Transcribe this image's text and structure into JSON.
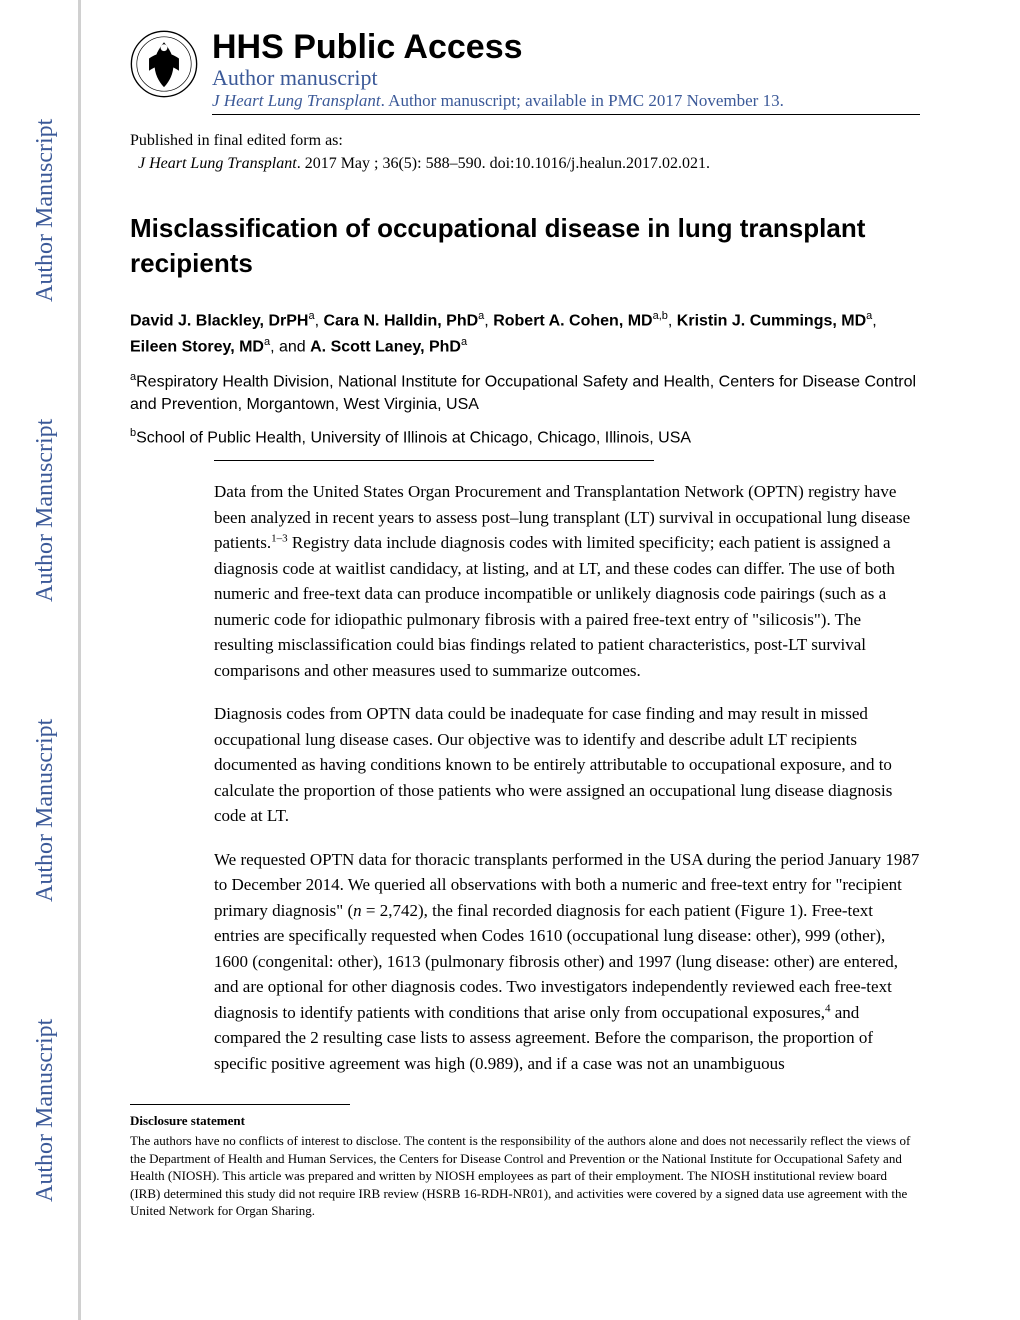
{
  "watermark": {
    "text": "Author Manuscript",
    "color": "#3b5998",
    "fontsize": 24,
    "repeat": 4
  },
  "header": {
    "title": "HHS Public Access",
    "subtitle": "Author manuscript",
    "journal_italic": "J Heart Lung Transplant",
    "journal_rest": ". Author manuscript; available in PMC 2017 November 13.",
    "title_fontsize": 34,
    "subtitle_fontsize": 22,
    "accent_color": "#3b5998"
  },
  "pub_info": {
    "line1": "Published in final edited form as:",
    "journal_italic": "J Heart Lung Transplant",
    "citation_rest": ". 2017 May ; 36(5): 588–590. doi:10.1016/j.healun.2017.02.021."
  },
  "article": {
    "title": "Misclassification of occupational disease in lung transplant recipients",
    "title_fontsize": 26
  },
  "authors": {
    "list": [
      {
        "name": "David J. Blackley, DrPH",
        "aff": "a"
      },
      {
        "name": "Cara N. Halldin, PhD",
        "aff": "a"
      },
      {
        "name": "Robert A. Cohen, MD",
        "aff": "a,b"
      },
      {
        "name": "Kristin J. Cummings, MD",
        "aff": "a"
      },
      {
        "name": "Eileen Storey, MD",
        "aff": "a"
      },
      {
        "name": "A. Scott Laney, PhD",
        "aff": "a"
      }
    ],
    "and_word": "and"
  },
  "affiliations": [
    {
      "sup": "a",
      "text": "Respiratory Health Division, National Institute for Occupational Safety and Health, Centers for Disease Control and Prevention, Morgantown, West Virginia, USA"
    },
    {
      "sup": "b",
      "text": "School of Public Health, University of Illinois at Chicago, Chicago, Illinois, USA"
    }
  ],
  "body": {
    "p1a": "Data from the United States Organ Procurement and Transplantation Network (OPTN) registry have been analyzed in recent years to assess post–lung transplant (LT) survival in occupational lung disease patients.",
    "p1_ref": "1–3",
    "p1b": " Registry data include diagnosis codes with limited specificity; each patient is assigned a diagnosis code at waitlist candidacy, at listing, and at LT, and these codes can differ. The use of both numeric and free-text data can produce incompatible or unlikely diagnosis code pairings (such as a numeric code for idiopathic pulmonary fibrosis with a paired free-text entry of \"silicosis\"). The resulting misclassification could bias findings related to patient characteristics, post-LT survival comparisons and other measures used to summarize outcomes.",
    "p2": "Diagnosis codes from OPTN data could be inadequate for case finding and may result in missed occupational lung disease cases. Our objective was to identify and describe adult LT recipients documented as having conditions known to be entirely attributable to occupational exposure, and to calculate the proportion of those patients who were assigned an occupational lung disease diagnosis code at LT.",
    "p3a": "We requested OPTN data for thoracic transplants performed in the USA during the period January 1987 to December 2014. We queried all observations with both a numeric and free-text entry for \"recipient primary diagnosis\" (",
    "p3_ital": "n ",
    "p3b": "= 2,742), the final recorded diagnosis for each patient (Figure 1). Free-text entries are specifically requested when Codes 1610 (occupational lung disease: other), 999 (other), 1600 (congenital: other), 1613 (pulmonary fibrosis other) and 1997 (lung disease: other) are entered, and are optional for other diagnosis codes. Two investigators independently reviewed each free-text diagnosis to identify patients with conditions that arise only from occupational exposures,",
    "p3_ref": "4",
    "p3c": " and compared the 2 resulting case lists to assess agreement. Before the comparison, the proportion of specific positive agreement was high (0.989), and if a case was not an unambiguous"
  },
  "footnote": {
    "heading": "Disclosure statement",
    "text": "The authors have no conflicts of interest to disclose. The content is the responsibility of the authors alone and does not necessarily reflect the views of the Department of Health and Human Services, the Centers for Disease Control and Prevention or the National Institute for Occupational Safety and Health (NIOSH). This article was prepared and written by NIOSH employees as part of their employment. The NIOSH institutional review board (IRB) determined this study did not require IRB review (HSRB 16-RDH-NR01), and activities were covered by a signed data use agreement with the United Network for Organ Sharing."
  },
  "colors": {
    "text": "#000000",
    "accent": "#3b5998",
    "background": "#ffffff",
    "border_gray": "#d0d0d0"
  },
  "typography": {
    "body_fontsize": 17,
    "footnote_fontsize": 13,
    "affil_fontsize": 16
  }
}
